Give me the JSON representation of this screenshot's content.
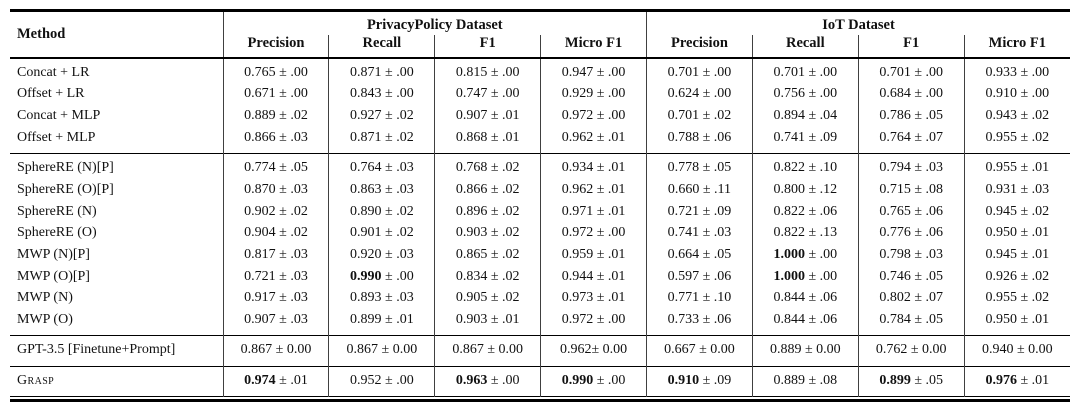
{
  "table": {
    "method_header": "Method",
    "col_groups": [
      {
        "label": "PrivacyPolicy Dataset",
        "columns": [
          "Precision",
          "Recall",
          "F1",
          "Micro F1"
        ]
      },
      {
        "label": "IoT Dataset",
        "columns": [
          "Precision",
          "Recall",
          "F1",
          "Micro F1"
        ]
      }
    ],
    "row_groups": [
      {
        "rows": [
          {
            "method": "Concat + LR",
            "cells": [
              {
                "v": "0.765",
                "pm": "± .00"
              },
              {
                "v": "0.871",
                "pm": "± .00"
              },
              {
                "v": "0.815",
                "pm": "± .00"
              },
              {
                "v": "0.947",
                "pm": "± .00"
              },
              {
                "v": "0.701",
                "pm": "± .00"
              },
              {
                "v": "0.701",
                "pm": "± .00"
              },
              {
                "v": "0.701",
                "pm": "± .00"
              },
              {
                "v": "0.933",
                "pm": "± .00"
              }
            ]
          },
          {
            "method": "Offset + LR",
            "cells": [
              {
                "v": "0.671",
                "pm": "± .00"
              },
              {
                "v": "0.843",
                "pm": "± .00"
              },
              {
                "v": "0.747",
                "pm": "± .00"
              },
              {
                "v": "0.929",
                "pm": "± .00"
              },
              {
                "v": "0.624",
                "pm": "± .00"
              },
              {
                "v": "0.756",
                "pm": "± .00"
              },
              {
                "v": "0.684",
                "pm": "± .00"
              },
              {
                "v": "0.910",
                "pm": "± .00"
              }
            ]
          },
          {
            "method": "Concat + MLP",
            "cells": [
              {
                "v": "0.889",
                "pm": "± .02"
              },
              {
                "v": "0.927",
                "pm": "± .02"
              },
              {
                "v": "0.907",
                "pm": "± .01"
              },
              {
                "v": "0.972",
                "pm": "± .00"
              },
              {
                "v": "0.701",
                "pm": "± .02"
              },
              {
                "v": "0.894",
                "pm": "± .04"
              },
              {
                "v": "0.786",
                "pm": "± .05"
              },
              {
                "v": "0.943",
                "pm": "± .02"
              }
            ]
          },
          {
            "method": "Offset + MLP",
            "cells": [
              {
                "v": "0.866",
                "pm": "± .03"
              },
              {
                "v": "0.871",
                "pm": "± .02"
              },
              {
                "v": "0.868",
                "pm": "± .01"
              },
              {
                "v": "0.962",
                "pm": "± .01"
              },
              {
                "v": "0.788",
                "pm": "± .06"
              },
              {
                "v": "0.741",
                "pm": "± .09"
              },
              {
                "v": "0.764",
                "pm": "± .07"
              },
              {
                "v": "0.955",
                "pm": "± .02"
              }
            ]
          }
        ]
      },
      {
        "rows": [
          {
            "method": "SphereRE (N)[P]",
            "cells": [
              {
                "v": "0.774",
                "pm": "± .05"
              },
              {
                "v": "0.764",
                "pm": "± .03"
              },
              {
                "v": "0.768",
                "pm": "± .02"
              },
              {
                "v": "0.934",
                "pm": "± .01"
              },
              {
                "v": "0.778",
                "pm": "± .05"
              },
              {
                "v": "0.822",
                "pm": "± .10"
              },
              {
                "v": "0.794",
                "pm": "± .03"
              },
              {
                "v": "0.955",
                "pm": "± .01"
              }
            ]
          },
          {
            "method": "SphereRE (O)[P]",
            "cells": [
              {
                "v": "0.870",
                "pm": "± .03"
              },
              {
                "v": "0.863",
                "pm": "± .03"
              },
              {
                "v": "0.866",
                "pm": "± .02"
              },
              {
                "v": "0.962",
                "pm": "± .01"
              },
              {
                "v": "0.660",
                "pm": "± .11"
              },
              {
                "v": "0.800",
                "pm": "± .12"
              },
              {
                "v": "0.715",
                "pm": "± .08"
              },
              {
                "v": "0.931",
                "pm": "± .03"
              }
            ]
          },
          {
            "method": "SphereRE (N)",
            "cells": [
              {
                "v": "0.902",
                "pm": "± .02"
              },
              {
                "v": "0.890",
                "pm": "± .02"
              },
              {
                "v": "0.896",
                "pm": "± .02"
              },
              {
                "v": "0.971",
                "pm": "± .01"
              },
              {
                "v": "0.721",
                "pm": "± .09"
              },
              {
                "v": "0.822",
                "pm": "± .06"
              },
              {
                "v": "0.765",
                "pm": "± .06"
              },
              {
                "v": "0.945",
                "pm": "± .02"
              }
            ]
          },
          {
            "method": "SphereRE (O)",
            "cells": [
              {
                "v": "0.904",
                "pm": "± .02"
              },
              {
                "v": "0.901",
                "pm": "± .02"
              },
              {
                "v": "0.903",
                "pm": "± .02"
              },
              {
                "v": "0.972",
                "pm": "± .00"
              },
              {
                "v": "0.741",
                "pm": "± .03"
              },
              {
                "v": "0.822",
                "pm": "± .13"
              },
              {
                "v": "0.776",
                "pm": "± .06"
              },
              {
                "v": "0.950",
                "pm": "± .01"
              }
            ]
          },
          {
            "method": "MWP (N)[P]",
            "cells": [
              {
                "v": "0.817",
                "pm": "± .03"
              },
              {
                "v": "0.920",
                "pm": "± .03"
              },
              {
                "v": "0.865",
                "pm": "± .02"
              },
              {
                "v": "0.959",
                "pm": "± .01"
              },
              {
                "v": "0.664",
                "pm": "± .05"
              },
              {
                "v": "1.000",
                "pm": "± .00",
                "b": true
              },
              {
                "v": "0.798",
                "pm": "± .03"
              },
              {
                "v": "0.945",
                "pm": "± .01"
              }
            ]
          },
          {
            "method": "MWP (O)[P]",
            "cells": [
              {
                "v": "0.721",
                "pm": "± .03"
              },
              {
                "v": "0.990",
                "pm": "± .00",
                "b": true
              },
              {
                "v": "0.834",
                "pm": "± .02"
              },
              {
                "v": "0.944",
                "pm": "± .01"
              },
              {
                "v": "0.597",
                "pm": "± .06"
              },
              {
                "v": "1.000",
                "pm": "± .00",
                "b": true
              },
              {
                "v": "0.746",
                "pm": "± .05"
              },
              {
                "v": "0.926",
                "pm": "± .02"
              }
            ]
          },
          {
            "method": "MWP (N)",
            "cells": [
              {
                "v": "0.917",
                "pm": "± .03"
              },
              {
                "v": "0.893",
                "pm": "± .03"
              },
              {
                "v": "0.905",
                "pm": "± .02"
              },
              {
                "v": "0.973",
                "pm": "± .01"
              },
              {
                "v": "0.771",
                "pm": "± .10"
              },
              {
                "v": "0.844",
                "pm": "± .06"
              },
              {
                "v": "0.802",
                "pm": "± .07"
              },
              {
                "v": "0.955",
                "pm": "± .02"
              }
            ]
          },
          {
            "method": "MWP (O)",
            "cells": [
              {
                "v": "0.907",
                "pm": "± .03"
              },
              {
                "v": "0.899",
                "pm": "± .01"
              },
              {
                "v": "0.903",
                "pm": "± .01"
              },
              {
                "v": "0.972",
                "pm": "± .00"
              },
              {
                "v": "0.733",
                "pm": "± .06"
              },
              {
                "v": "0.844",
                "pm": "± .06"
              },
              {
                "v": "0.784",
                "pm": "± .05"
              },
              {
                "v": "0.950",
                "pm": "± .01"
              }
            ]
          }
        ]
      },
      {
        "rows": [
          {
            "method": "GPT-3.5 [Finetune+Prompt]",
            "cells": [
              {
                "v": "0.867",
                "pm": "± 0.00"
              },
              {
                "v": "0.867",
                "pm": "± 0.00"
              },
              {
                "v": "0.867",
                "pm": "± 0.00"
              },
              {
                "v": "0.962",
                "pm": "± 0.00",
                "tight": true
              },
              {
                "v": "0.667",
                "pm": "± 0.00"
              },
              {
                "v": "0.889",
                "pm": "± 0.00"
              },
              {
                "v": "0.762",
                "pm": "± 0.00"
              },
              {
                "v": "0.940",
                "pm": "± 0.00"
              }
            ]
          }
        ]
      },
      {
        "rows": [
          {
            "method": "Grasp",
            "smallcaps": true,
            "cells": [
              {
                "v": "0.974",
                "pm": "± .01",
                "b": true
              },
              {
                "v": "0.952",
                "pm": "± .00"
              },
              {
                "v": "0.963",
                "pm": "± .00",
                "b": true
              },
              {
                "v": "0.990",
                "pm": "± .00",
                "b": true
              },
              {
                "v": "0.910",
                "pm": "± .09",
                "b": true
              },
              {
                "v": "0.889",
                "pm": "± .08"
              },
              {
                "v": "0.899",
                "pm": "± .05",
                "b": true
              },
              {
                "v": "0.976",
                "pm": "± .01",
                "b": true
              }
            ]
          }
        ]
      }
    ]
  }
}
